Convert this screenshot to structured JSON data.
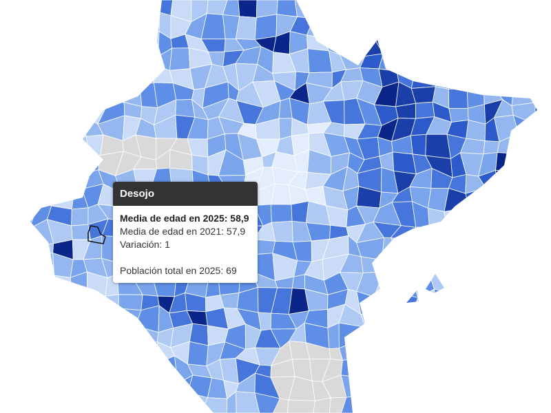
{
  "tooltip": {
    "title": "Desojo",
    "line1": "Media de edad en 2025: 58,9",
    "line2": "Media de edad en 2021: 57,9",
    "line3": "Variación: 1",
    "line4": "Población total en 2025: 69"
  },
  "map": {
    "palette": [
      "#e4edfb",
      "#c9dbf7",
      "#aec9f4",
      "#94b7f0",
      "#7aa4ec",
      "#5f8ee6",
      "#4676dc",
      "#2c5acb",
      "#1a3fa8",
      "#0b268a"
    ],
    "no_data_color": "#d9d9d9",
    "highlight_outline": "#111111"
  }
}
